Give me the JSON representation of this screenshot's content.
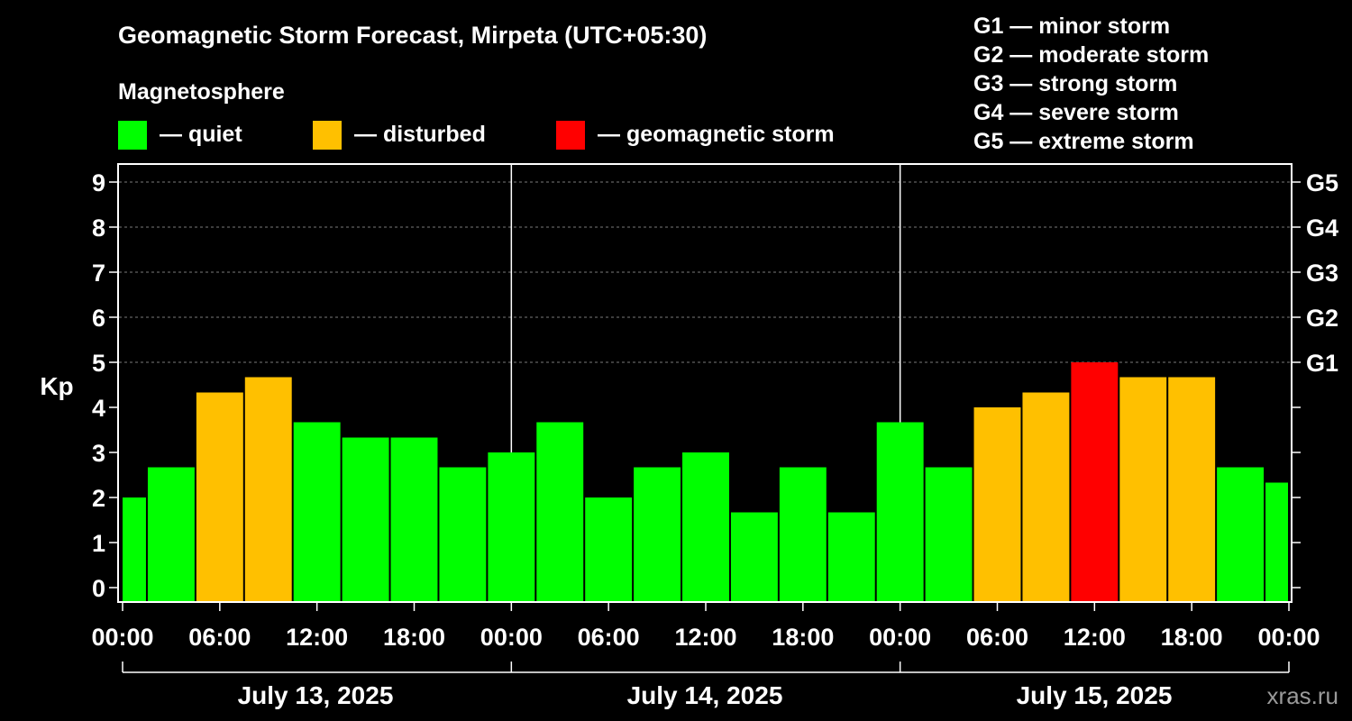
{
  "chart_data": {
    "type": "bar",
    "title": "Geomagnetic Storm Forecast, Mirpeta (UTC+05:30)",
    "ylabel": "Kp",
    "ylim": [
      0,
      9
    ],
    "yticks": [
      "0",
      "1",
      "2",
      "3",
      "4",
      "5",
      "6",
      "7",
      "8",
      "9"
    ],
    "storm_levels": [
      {
        "kp": 5,
        "label": "G1"
      },
      {
        "kp": 6,
        "label": "G2"
      },
      {
        "kp": 7,
        "label": "G3"
      },
      {
        "kp": 8,
        "label": "G4"
      },
      {
        "kp": 9,
        "label": "G5"
      }
    ],
    "storm_legend": [
      "G1 — minor storm",
      "G2 — moderate storm",
      "G3 — strong storm",
      "G4 — severe storm",
      "G5 — extreme storm"
    ],
    "magnetosphere": {
      "heading": "Magnetosphere",
      "states": [
        {
          "label": "— quiet",
          "color": "#00ff00"
        },
        {
          "label": "— disturbed",
          "color": "#ffc000"
        },
        {
          "label": "— geomagnetic storm",
          "color": "#ff0000"
        }
      ]
    },
    "x_range_hours": [
      0,
      72
    ],
    "xtick_labels": [
      "00:00",
      "06:00",
      "12:00",
      "18:00",
      "00:00",
      "06:00",
      "12:00",
      "18:00",
      "00:00",
      "06:00",
      "12:00",
      "18:00",
      "00:00"
    ],
    "days": [
      "July 13, 2025",
      "July 14, 2025",
      "July 15, 2025"
    ],
    "bars": [
      {
        "start": 0,
        "end": 1.5,
        "kp": 2.0,
        "state": "quiet"
      },
      {
        "start": 1.5,
        "end": 4.5,
        "kp": 2.67,
        "state": "quiet"
      },
      {
        "start": 4.5,
        "end": 7.5,
        "kp": 4.33,
        "state": "disturbed"
      },
      {
        "start": 7.5,
        "end": 10.5,
        "kp": 4.67,
        "state": "disturbed"
      },
      {
        "start": 10.5,
        "end": 13.5,
        "kp": 3.67,
        "state": "quiet"
      },
      {
        "start": 13.5,
        "end": 16.5,
        "kp": 3.33,
        "state": "quiet"
      },
      {
        "start": 16.5,
        "end": 19.5,
        "kp": 3.33,
        "state": "quiet"
      },
      {
        "start": 19.5,
        "end": 22.5,
        "kp": 2.67,
        "state": "quiet"
      },
      {
        "start": 22.5,
        "end": 25.5,
        "kp": 3.0,
        "state": "quiet"
      },
      {
        "start": 25.5,
        "end": 28.5,
        "kp": 3.67,
        "state": "quiet"
      },
      {
        "start": 28.5,
        "end": 31.5,
        "kp": 2.0,
        "state": "quiet"
      },
      {
        "start": 31.5,
        "end": 34.5,
        "kp": 2.67,
        "state": "quiet"
      },
      {
        "start": 34.5,
        "end": 37.5,
        "kp": 3.0,
        "state": "quiet"
      },
      {
        "start": 37.5,
        "end": 40.5,
        "kp": 1.67,
        "state": "quiet"
      },
      {
        "start": 40.5,
        "end": 43.5,
        "kp": 2.67,
        "state": "quiet"
      },
      {
        "start": 43.5,
        "end": 46.5,
        "kp": 1.67,
        "state": "quiet"
      },
      {
        "start": 46.5,
        "end": 49.5,
        "kp": 3.67,
        "state": "quiet"
      },
      {
        "start": 49.5,
        "end": 52.5,
        "kp": 2.67,
        "state": "quiet"
      },
      {
        "start": 52.5,
        "end": 55.5,
        "kp": 4.0,
        "state": "disturbed"
      },
      {
        "start": 55.5,
        "end": 58.5,
        "kp": 4.33,
        "state": "disturbed"
      },
      {
        "start": 58.5,
        "end": 61.5,
        "kp": 5.0,
        "state": "storm"
      },
      {
        "start": 61.5,
        "end": 64.5,
        "kp": 4.67,
        "state": "disturbed"
      },
      {
        "start": 64.5,
        "end": 67.5,
        "kp": 4.67,
        "state": "disturbed"
      },
      {
        "start": 67.5,
        "end": 70.5,
        "kp": 2.67,
        "state": "quiet"
      },
      {
        "start": 70.5,
        "end": 72,
        "kp": 2.33,
        "state": "quiet"
      }
    ],
    "state_colors": {
      "quiet": "#00ff00",
      "disturbed": "#ffc000",
      "storm": "#ff0000"
    },
    "watermark": "xras.ru"
  }
}
